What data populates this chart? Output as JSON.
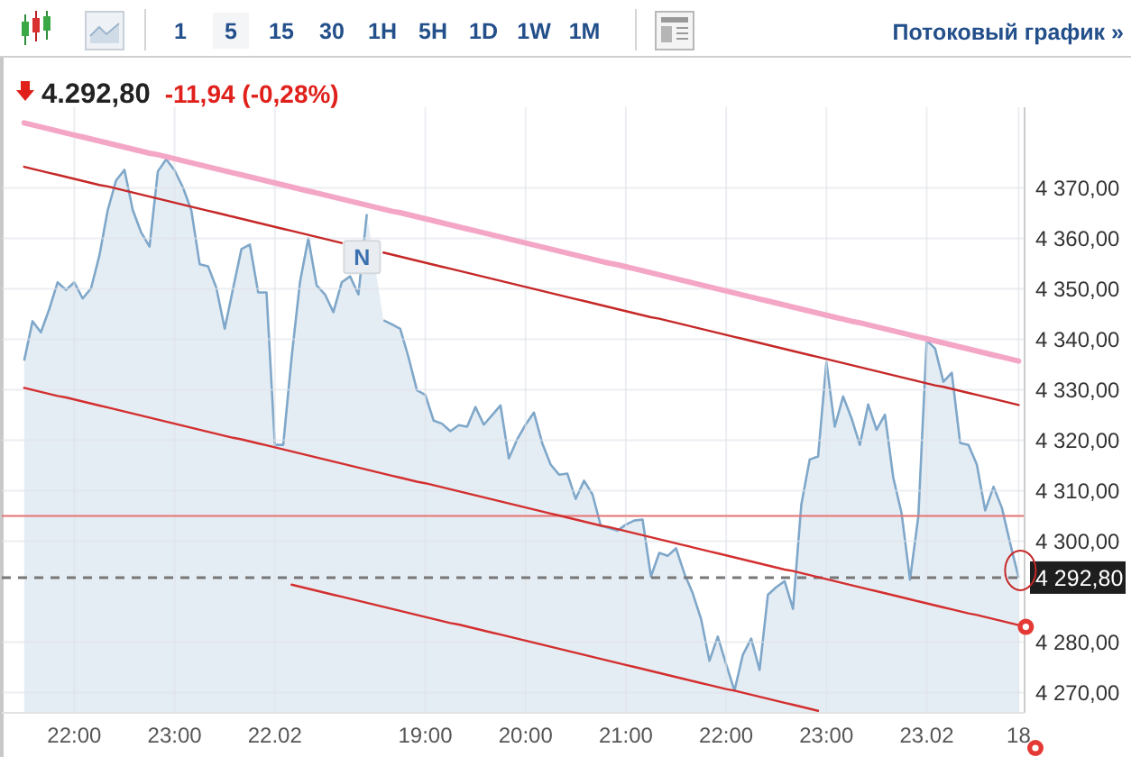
{
  "chart_data": {
    "type": "area",
    "title": "4.292,80",
    "subtitle": "-11,94 (-0,28%)",
    "categories": [
      null,
      null,
      null,
      null,
      null,
      null,
      "22:00",
      null,
      null,
      null,
      null,
      null,
      null,
      null,
      null,
      null,
      null,
      null,
      "23:00",
      null,
      null,
      null,
      null,
      null,
      null,
      null,
      null,
      null,
      null,
      null,
      "22.02",
      null,
      null,
      null,
      null,
      null,
      null,
      null,
      null,
      null,
      null,
      null,
      null,
      null,
      null,
      null,
      null,
      null,
      "19:00",
      null,
      null,
      null,
      null,
      null,
      null,
      null,
      null,
      null,
      null,
      null,
      "20:00",
      null,
      null,
      null,
      null,
      null,
      null,
      null,
      null,
      null,
      null,
      null,
      "21:00",
      null,
      null,
      null,
      null,
      null,
      null,
      null,
      null,
      null,
      null,
      null,
      "22:00",
      null,
      null,
      null,
      null,
      null,
      null,
      null,
      null,
      null,
      null,
      null,
      "23:00",
      null,
      null,
      null,
      null,
      null,
      null,
      null,
      null,
      null,
      null,
      null,
      "23.02",
      null,
      null,
      null,
      null,
      null,
      null,
      null,
      null,
      null,
      null,
      "18"
    ],
    "series": [
      {
        "color": "#7fa7c9",
        "values": [
          4335.8,
          4343.6,
          4341.4,
          4346.0,
          4351.3,
          4349.8,
          4351.3,
          4348.1,
          4350.1,
          4356.6,
          4365.6,
          4371.5,
          4373.6,
          4365.6,
          4361.2,
          4358.4,
          4373.3,
          4375.7,
          4373.5,
          4370.1,
          4365.6,
          4354.9,
          4354.5,
          4350.2,
          4342.1,
          4350.1,
          4357.9,
          4358.8,
          4349.3,
          4349.3,
          4319.1,
          4319.1,
          4336.4,
          4351.3,
          4360.0,
          4350.7,
          4348.9,
          4345.4,
          4351.3,
          4352.5,
          4348.9,
          4364.8,
          null,
          4343.8,
          4343.0,
          4342.1,
          4336.4,
          4329.9,
          4329.0,
          4323.9,
          4323.3,
          4321.8,
          4323.0,
          4322.7,
          4326.6,
          4323.1,
          4325.0,
          4326.9,
          4316.4,
          4320.2,
          4323.1,
          4325.5,
          4319.4,
          4315.2,
          4313.2,
          4313.4,
          4308.4,
          4312.0,
          4309.3,
          4303.1,
          4302.6,
          4302.1,
          4303.3,
          4304.1,
          4304.3,
          4293.0,
          4297.7,
          4297.1,
          4298.6,
          4293.6,
          4289.7,
          4284.6,
          4276.3,
          4281.1,
          4275.6,
          4270.4,
          4277.5,
          4280.7,
          4274.5,
          4289.4,
          4290.9,
          4292.1,
          4286.6,
          4307.3,
          4316.2,
          4316.8,
          4335.5,
          4322.7,
          4328.7,
          4324.4,
          4319.1,
          4327.1,
          4322.1,
          4325.1,
          4312.6,
          4305.5,
          4292.4,
          4304.9,
          4339.8,
          4338.2,
          4331.6,
          4333.4,
          4319.5,
          4319.1,
          4315.2,
          4306.1,
          4310.8,
          4306.6,
          4299.5,
          4292.8
        ]
      },
      {
        "type": "line",
        "color": "#f4a6c6",
        "values": [
          4382.9,
          4382.5,
          4382.1,
          4381.7,
          4381.3,
          4380.9,
          4380.5,
          4380.1,
          4379.7,
          4379.3,
          4378.9,
          4378.5,
          4378.1,
          4377.7,
          4377.3,
          4376.9,
          4376.6,
          4376.2,
          4375.8,
          4375.4,
          4375.0,
          4374.6,
          4374.2,
          4373.8,
          4373.4,
          4373.0,
          4372.6,
          4372.2,
          4371.8,
          4371.4,
          4371.0,
          4370.6,
          4370.2,
          4369.8,
          4369.4,
          4369.0,
          4368.6,
          4368.2,
          4367.8,
          4367.4,
          4367.0,
          4366.6,
          4366.2,
          4365.8,
          4365.4,
          4365.1,
          4364.7,
          4364.3,
          4363.9,
          4363.5,
          4363.1,
          4362.7,
          4362.3,
          4361.9,
          4361.5,
          4361.1,
          4360.7,
          4360.3,
          4359.9,
          4359.5,
          4359.1,
          4358.7,
          4358.3,
          4357.9,
          4357.5,
          4357.1,
          4356.7,
          4356.3,
          4355.9,
          4355.5,
          4355.1,
          4354.8,
          4354.4,
          4354.0,
          4353.6,
          4353.2,
          4352.8,
          4352.4,
          4352.0,
          4351.6,
          4351.2,
          4350.8,
          4350.4,
          4350.0,
          4349.6,
          4349.2,
          4348.8,
          4348.4,
          4348.0,
          4347.6,
          4347.2,
          4346.8,
          4346.4,
          4346.0,
          4345.6,
          4345.2,
          4344.8,
          4344.4,
          4344.0,
          4343.6,
          4343.3,
          4342.9,
          4342.5,
          4342.1,
          4341.7,
          4341.3,
          4340.9,
          4340.5,
          4340.1,
          4339.7,
          4339.3,
          4338.9,
          4338.5,
          4338.1,
          4337.7,
          4337.3,
          4336.9,
          4336.5,
          4336.1,
          4335.7
        ]
      },
      {
        "type": "line",
        "color": "#c62828",
        "values": [
          4374.2,
          4373.8,
          4373.4,
          4373.0,
          4372.6,
          4372.2,
          4371.8,
          4371.4,
          4371.0,
          4370.6,
          4370.3,
          4369.9,
          4369.5,
          4369.1,
          4368.7,
          4368.3,
          4367.9,
          4367.5,
          4367.1,
          4366.7,
          4366.3,
          4365.9,
          4365.5,
          4365.1,
          4364.7,
          4364.3,
          4363.9,
          4363.5,
          4363.1,
          4362.7,
          4362.3,
          4361.9,
          4361.5,
          4361.1,
          4360.7,
          4360.3,
          4359.9,
          4359.5,
          4359.1,
          null,
          null,
          null,
          null,
          4357.2,
          4356.8,
          4356.4,
          4356.0,
          4355.6,
          4355.2,
          4354.8,
          4354.4,
          4354.0,
          4353.6,
          4353.2,
          4352.8,
          4352.4,
          4352.0,
          4351.6,
          4351.2,
          4350.8,
          4350.4,
          4350.0,
          4349.6,
          4349.2,
          4348.8,
          4348.4,
          4348.0,
          4347.6,
          4347.2,
          4346.8,
          4346.4,
          4346.0,
          4345.6,
          4345.2,
          4344.8,
          4344.4,
          4344.1,
          4343.7,
          4343.3,
          4342.9,
          4342.5,
          4342.1,
          4341.7,
          4341.3,
          4340.9,
          4340.5,
          4340.1,
          4339.7,
          4339.3,
          4338.9,
          4338.5,
          4338.1,
          4337.7,
          4337.3,
          4336.9,
          4336.5,
          4336.1,
          4335.7,
          4335.3,
          4334.9,
          4334.5,
          4334.1,
          4333.7,
          4333.3,
          4332.9,
          4332.5,
          4332.1,
          4331.7,
          4331.3,
          4330.9,
          4330.6,
          4330.2,
          4329.8,
          4329.4,
          4329.0,
          4328.6,
          4328.2,
          4327.8,
          4327.4,
          4327.0
        ]
      },
      {
        "type": "line",
        "color": "#d32f2f",
        "values": [
          4330.4,
          4330.0,
          4329.6,
          4329.2,
          4328.8,
          4328.5,
          4328.1,
          4327.7,
          4327.3,
          4326.9,
          4326.5,
          4326.1,
          4325.7,
          4325.3,
          4324.9,
          4324.5,
          4324.1,
          4323.7,
          4323.3,
          4322.9,
          4322.5,
          4322.1,
          4321.7,
          4321.3,
          4320.9,
          4320.5,
          4320.2,
          4319.8,
          4319.4,
          4319.0,
          4318.6,
          4318.2,
          4317.8,
          4317.4,
          4317.0,
          4316.6,
          4316.2,
          4315.8,
          4315.4,
          4315.0,
          4314.6,
          4314.2,
          4313.8,
          4313.4,
          4313.0,
          4312.6,
          4312.2,
          4311.8,
          4311.5,
          4311.1,
          4310.7,
          4310.3,
          4309.9,
          4309.5,
          4309.1,
          4308.7,
          4308.3,
          4307.9,
          4307.5,
          4307.1,
          4306.7,
          4306.3,
          4305.9,
          4305.5,
          4305.1,
          4304.7,
          4304.3,
          4303.9,
          4303.5,
          4303.1,
          4302.8,
          4302.4,
          4302.0,
          4301.6,
          4301.2,
          4300.8,
          4300.4,
          4300.0,
          4299.6,
          4299.2,
          4298.8,
          4298.4,
          4298.0,
          4297.6,
          4297.2,
          4296.8,
          4296.4,
          4296.0,
          4295.6,
          4295.2,
          4294.8,
          4294.4,
          4294.1,
          4293.7,
          4293.3,
          4292.9,
          4292.5,
          4292.1,
          4291.7,
          4291.3,
          4290.9,
          4290.5,
          4290.1,
          4289.7,
          4289.3,
          4288.9,
          4288.5,
          4288.1,
          4287.7,
          4287.3,
          4286.9,
          4286.5,
          4286.1,
          4285.7,
          4285.4,
          4285.0,
          4284.6,
          4284.2,
          4283.8,
          4283.4
        ]
      },
      {
        "type": "line",
        "color": "#d32f2f",
        "values": [
          null,
          null,
          null,
          null,
          null,
          null,
          null,
          null,
          null,
          null,
          null,
          null,
          null,
          null,
          null,
          null,
          null,
          null,
          null,
          null,
          null,
          null,
          null,
          null,
          null,
          null,
          null,
          null,
          null,
          null,
          null,
          null,
          4291.4,
          4291.0,
          4290.6,
          4290.2,
          4289.8,
          4289.4,
          4289.0,
          4288.6,
          4288.2,
          4287.8,
          4287.4,
          4287.0,
          4286.6,
          4286.2,
          4285.8,
          4285.4,
          4285.0,
          4284.6,
          4284.2,
          4283.8,
          4283.5,
          4283.1,
          4282.7,
          4282.3,
          4281.9,
          4281.5,
          4281.1,
          4280.7,
          4280.3,
          4279.9,
          4279.5,
          4279.1,
          4278.7,
          4278.3,
          4277.9,
          4277.5,
          4277.1,
          4276.7,
          4276.3,
          4275.9,
          4275.5,
          4275.1,
          4274.7,
          4274.3,
          4273.9,
          4273.5,
          4273.1,
          4272.7,
          4272.3,
          4271.9,
          4271.5,
          4271.1,
          4270.7,
          4270.4,
          4270.0,
          4269.6,
          4269.2,
          4268.8,
          4268.4,
          4268.0,
          4267.6,
          4267.2,
          4266.8,
          4266.4,
          null,
          null,
          null,
          null,
          null,
          null,
          null,
          null,
          null,
          null,
          null,
          null,
          null,
          null,
          null,
          null,
          null,
          null,
          null,
          null,
          null,
          null,
          null,
          null
        ]
      }
    ],
    "ylim": [
      4266,
      4386
    ],
    "yticks": [
      {
        "value": 4270,
        "label": "4 270,00"
      },
      {
        "value": 4280,
        "label": "4 280,00"
      },
      {
        "value": 4300,
        "label": "4 300,00"
      },
      {
        "value": 4310,
        "label": "4 310,00"
      },
      {
        "value": 4320,
        "label": "4 320,00"
      },
      {
        "value": 4330,
        "label": "4 330,00"
      },
      {
        "value": 4340,
        "label": "4 340,00"
      },
      {
        "value": 4350,
        "label": "4 350,00"
      },
      {
        "value": 4360,
        "label": "4 360,00"
      },
      {
        "value": 4370,
        "label": "4 370,00"
      }
    ],
    "grid": true,
    "ref_lines": [
      {
        "axis": "y",
        "value": 4305,
        "color": "#e57373"
      },
      {
        "axis": "y",
        "value": 4292.8,
        "label": "4 292,80",
        "color": "#777777",
        "line_style": "dashed"
      }
    ],
    "annotations": [
      "1",
      "5",
      "15",
      "30",
      "1H",
      "5H",
      "1D",
      "1W",
      "1M",
      "Потоковый график »",
      {
        "text": "N",
        "y": 4356.3
      }
    ]
  }
}
